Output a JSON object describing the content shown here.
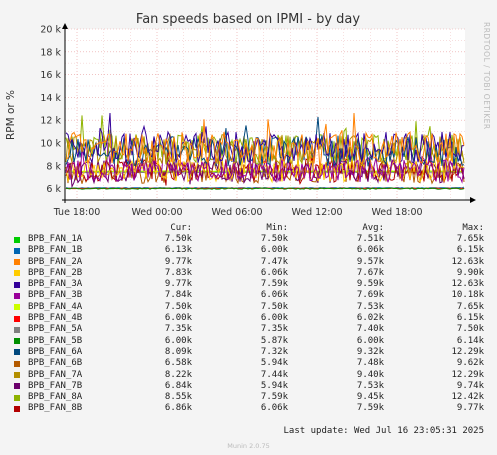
{
  "chart_data": {
    "type": "line",
    "title": "Fan speeds based on IPMI - by day",
    "ylabel": "RPM or %",
    "side_label": "RRDTOOL / TOBI OETIKER",
    "ylim": [
      5000,
      20000
    ],
    "y_ticks": [
      {
        "value": 6000,
        "label": "6 k"
      },
      {
        "value": 8000,
        "label": "8 k"
      },
      {
        "value": 10000,
        "label": "10 k"
      },
      {
        "value": 12000,
        "label": "12 k"
      },
      {
        "value": 14000,
        "label": "14 k"
      },
      {
        "value": 16000,
        "label": "16 k"
      },
      {
        "value": 18000,
        "label": "18 k"
      },
      {
        "value": 20000,
        "label": "20 k"
      }
    ],
    "x_ticks": [
      "Tue 18:00",
      "Wed 00:00",
      "Wed 06:00",
      "Wed 12:00",
      "Wed 18:00"
    ],
    "headers": {
      "cur": "Cur:",
      "min": "Min:",
      "avg": "Avg:",
      "max": "Max:"
    },
    "series": [
      {
        "name": "BPB_FAN_1A",
        "color": "#00cc00",
        "cur": "7.50k",
        "min": "7.50k",
        "avg": "7.51k",
        "max": "7.65k"
      },
      {
        "name": "BPB_FAN_1B",
        "color": "#0066b3",
        "cur": "6.13k",
        "min": "6.00k",
        "avg": "6.06k",
        "max": "6.15k"
      },
      {
        "name": "BPB_FAN_2A",
        "color": "#ff8000",
        "cur": "9.77k",
        "min": "7.47k",
        "avg": "9.57k",
        "max": "12.63k"
      },
      {
        "name": "BPB_FAN_2B",
        "color": "#ffcc00",
        "cur": "7.83k",
        "min": "6.06k",
        "avg": "7.67k",
        "max": "9.90k"
      },
      {
        "name": "BPB_FAN_3A",
        "color": "#330099",
        "cur": "9.77k",
        "min": "7.59k",
        "avg": "9.59k",
        "max": "12.63k"
      },
      {
        "name": "BPB_FAN_3B",
        "color": "#990099",
        "cur": "7.84k",
        "min": "6.06k",
        "avg": "7.69k",
        "max": "10.18k"
      },
      {
        "name": "BPB_FAN_4A",
        "color": "#ccff00",
        "cur": "7.50k",
        "min": "7.50k",
        "avg": "7.53k",
        "max": "7.65k"
      },
      {
        "name": "BPB_FAN_4B",
        "color": "#ff0000",
        "cur": "6.00k",
        "min": "6.00k",
        "avg": "6.02k",
        "max": "6.15k"
      },
      {
        "name": "BPB_FAN_5A",
        "color": "#808080",
        "cur": "7.35k",
        "min": "7.35k",
        "avg": "7.40k",
        "max": "7.50k"
      },
      {
        "name": "BPB_FAN_5B",
        "color": "#008f00",
        "cur": "6.00k",
        "min": "5.87k",
        "avg": "6.00k",
        "max": "6.14k"
      },
      {
        "name": "BPB_FAN_6A",
        "color": "#00487d",
        "cur": "8.09k",
        "min": "7.32k",
        "avg": "9.32k",
        "max": "12.29k"
      },
      {
        "name": "BPB_FAN_6B",
        "color": "#b35a00",
        "cur": "6.58k",
        "min": "5.94k",
        "avg": "7.48k",
        "max": "9.62k"
      },
      {
        "name": "BPB_FAN_7A",
        "color": "#b38f00",
        "cur": "8.22k",
        "min": "7.44k",
        "avg": "9.40k",
        "max": "12.29k"
      },
      {
        "name": "BPB_FAN_7B",
        "color": "#6b006b",
        "cur": "6.84k",
        "min": "5.94k",
        "avg": "7.53k",
        "max": "9.74k"
      },
      {
        "name": "BPB_FAN_8A",
        "color": "#8fb300",
        "cur": "8.55k",
        "min": "7.59k",
        "avg": "9.45k",
        "max": "12.42k"
      },
      {
        "name": "BPB_FAN_8B",
        "color": "#b30000",
        "cur": "6.86k",
        "min": "6.06k",
        "avg": "7.59k",
        "max": "9.77k"
      }
    ],
    "last_update": "Last update: Wed Jul 16 23:05:31 2025",
    "footer": "Munin 2.0.75"
  }
}
